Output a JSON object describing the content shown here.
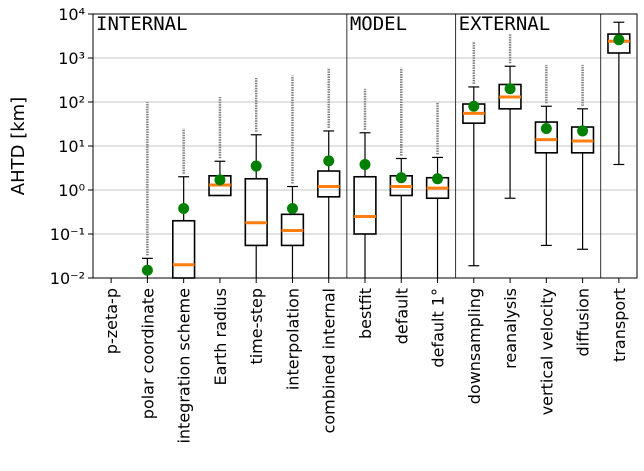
{
  "chart_data": {
    "type": "box",
    "ylabel": "AHTD [km]",
    "log_y": true,
    "grid": true,
    "sections": [
      "INTERNAL",
      "MODEL",
      "EXTERNAL"
    ],
    "categories": [
      "p-zeta-p",
      "polar coordinate",
      "integration scheme",
      "Earth radius",
      "time-step",
      "interpolation",
      "combined internal",
      "bestfit",
      "default",
      "default 1°",
      "downsampling",
      "reanalysis",
      "vertical velocity",
      "diffusion",
      "transport"
    ],
    "median_color": "#ff7f0e",
    "mean_color": "#008000",
    "outlier_color": "#808080",
    "boxes": [
      {
        "whislo": null,
        "q1": null,
        "med": null,
        "q3": null,
        "whishi": null,
        "mean": null,
        "outlier_max": null
      },
      {
        "whislo": null,
        "q1": null,
        "med": null,
        "q3": null,
        "whishi": 0.028,
        "mean": 0.015,
        "outlier_max": 100
      },
      {
        "whislo": null,
        "q1": null,
        "med": 0.02,
        "q3": 0.2,
        "whishi": 2,
        "mean": 0.38,
        "outlier_max": 25
      },
      {
        "whislo": 0.75,
        "q1": 0.75,
        "med": 1.3,
        "q3": 2.1,
        "whishi": 4.5,
        "mean": 1.7,
        "outlier_max": 130
      },
      {
        "whislo": null,
        "q1": 0.055,
        "med": 0.18,
        "q3": 1.8,
        "whishi": 18,
        "mean": 3.5,
        "outlier_max": 350
      },
      {
        "whislo": null,
        "q1": 0.055,
        "med": 0.12,
        "q3": 0.28,
        "whishi": 1.2,
        "mean": 0.38,
        "outlier_max": 400
      },
      {
        "whislo": null,
        "q1": 0.7,
        "med": 1.2,
        "q3": 2.7,
        "whishi": 22,
        "mean": 4.6,
        "outlier_max": 600
      },
      {
        "whislo": null,
        "q1": 0.1,
        "med": 0.25,
        "q3": 2,
        "whishi": 20,
        "mean": 3.8,
        "outlier_max": 200
      },
      {
        "whislo": null,
        "q1": 0.75,
        "med": 1.2,
        "q3": 2.1,
        "whishi": 5.2,
        "mean": 1.9,
        "outlier_max": 600
      },
      {
        "whislo": null,
        "q1": 0.65,
        "med": 1.1,
        "q3": 1.9,
        "whishi": 5.5,
        "mean": 1.8,
        "outlier_max": 100
      },
      {
        "whislo": 0.019,
        "q1": 33,
        "med": 55,
        "q3": 90,
        "whishi": 220,
        "mean": 80,
        "outlier_max": 2400
      },
      {
        "whislo": 0.65,
        "q1": 70,
        "med": 130,
        "q3": 250,
        "whishi": 650,
        "mean": 200,
        "outlier_max": 3500
      },
      {
        "whislo": 0.055,
        "q1": 7,
        "med": 14,
        "q3": 35,
        "whishi": 80,
        "mean": 25,
        "outlier_max": 700
      },
      {
        "whislo": 0.045,
        "q1": 7,
        "med": 13,
        "q3": 27,
        "whishi": 70,
        "mean": 22,
        "outlier_max": 700
      },
      {
        "whislo": 3.8,
        "q1": 1300,
        "med": 2400,
        "q3": 3500,
        "whishi": 6500,
        "mean": 2600,
        "outlier_max": null
      }
    ],
    "ylim": [
      0.01,
      10000
    ],
    "yticks": [
      {
        "value": 0.01,
        "label": "10⁻²"
      },
      {
        "value": 0.1,
        "label": "10⁻¹"
      },
      {
        "value": 1,
        "label": "10⁰"
      },
      {
        "value": 10,
        "label": "10¹"
      },
      {
        "value": 100,
        "label": "10²"
      },
      {
        "value": 1000,
        "label": "10³"
      },
      {
        "value": 10000,
        "label": "10⁴"
      }
    ]
  }
}
